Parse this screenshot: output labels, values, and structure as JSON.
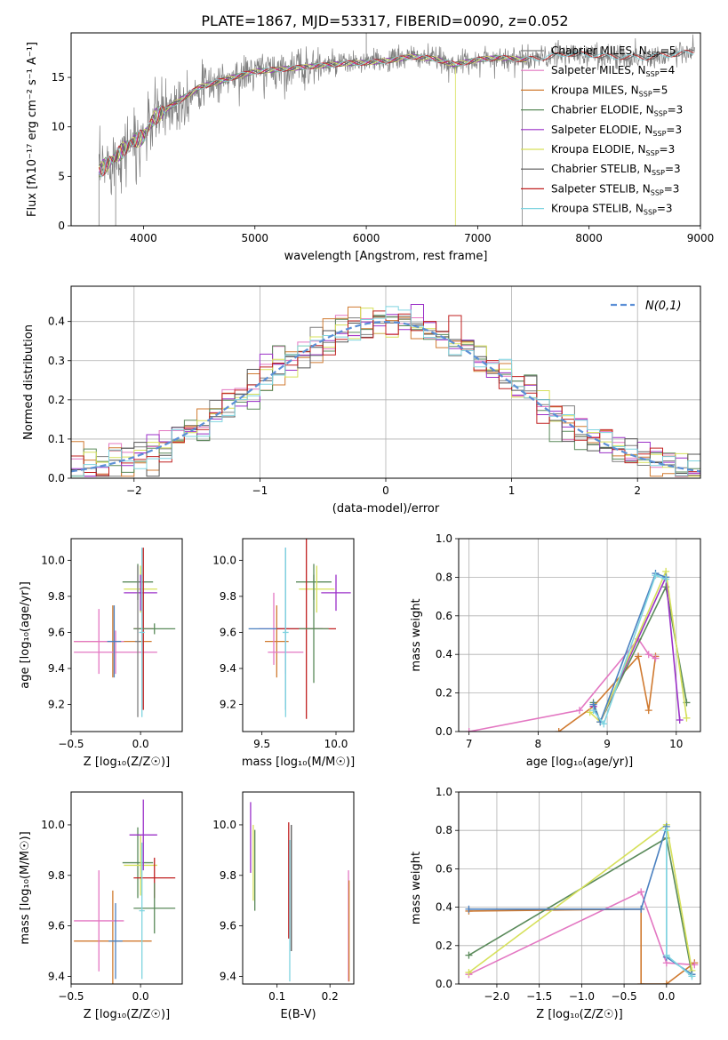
{
  "page": {
    "title": "PLATE=1867, MJD=53317, FIBERID=0090, z=0.052"
  },
  "chart_data": [
    {
      "id": "spectrum",
      "type": "line",
      "xlabel": "wavelength [Angstrom, rest frame]",
      "ylabel": "Flux [fλ10⁻¹⁷ erg cm⁻² s⁻¹ A⁻¹]",
      "xlim": [
        3350,
        9000
      ],
      "ylim": [
        0,
        19.5
      ],
      "xticks": [
        "4000",
        "5000",
        "6000",
        "7000",
        "8000",
        "9000"
      ],
      "yticks": [
        "0",
        "5",
        "10",
        "15"
      ],
      "grid": false,
      "legend": "top-right",
      "series": [
        {
          "name": "Chabrier MILES, N_SSP=5",
          "color": "#7f7f7f"
        },
        {
          "name": "Salpeter MILES, N_SSP=4",
          "color": "#e377c2"
        },
        {
          "name": "Kroupa MILES, N_SSP=5",
          "color": "#d07a30"
        },
        {
          "name": "Chabrier ELODIE, N_SSP=3",
          "color": "#5a8a5a"
        },
        {
          "name": "Salpeter ELODIE, N_SSP=3",
          "color": "#9b30c8"
        },
        {
          "name": "Kroupa ELODIE, N_SSP=3",
          "color": "#d6e05a"
        },
        {
          "name": "Chabrier STELIB, N_SSP=3",
          "color": "#555555"
        },
        {
          "name": "Salpeter STELIB, N_SSP=3",
          "color": "#c02020"
        },
        {
          "name": "Kroupa STELIB, N_SSP=3",
          "color": "#7fd4e0"
        }
      ],
      "continuum": {
        "x": [
          3600,
          3750,
          3900,
          4000,
          4100,
          4300,
          4500,
          4800,
          5000,
          5200,
          5500,
          5800,
          6000,
          6200,
          6400,
          6600,
          6800,
          7000,
          7200,
          7400,
          7600,
          7800,
          8000,
          8200,
          8500,
          8800,
          8950
        ],
        "y": [
          5.5,
          7,
          8.5,
          9,
          11,
          12.5,
          14,
          15,
          15.6,
          15.8,
          16.1,
          16.4,
          16.5,
          16.7,
          17.1,
          16.9,
          16.3,
          16.8,
          17,
          16.8,
          17,
          17.4,
          17.3,
          17.1,
          17,
          17.4,
          17.6
        ]
      }
    },
    {
      "id": "residuals",
      "type": "bar",
      "xlabel": "(data-model)/error",
      "ylabel": "Normed distribution",
      "xlim": [
        -2.5,
        2.5
      ],
      "ylim": [
        0,
        0.49
      ],
      "xticks": [
        "−2",
        "−1",
        "0",
        "1",
        "2"
      ],
      "yticks": [
        "0.0",
        "0.1",
        "0.2",
        "0.3",
        "0.4"
      ],
      "grid": true,
      "legend": "top-right",
      "legend_label": "N(0,1)",
      "bin_width": 0.1,
      "bin_start": -2.5
    },
    {
      "id": "age-Z",
      "type": "scatter",
      "xlabel": "Z [log₁₀(Z/Z☉)]",
      "ylabel": "age  [log₁₀(age/yr)]",
      "xlim": [
        -0.5,
        0.3
      ],
      "ylim": [
        9.05,
        10.12
      ],
      "xticks": [
        "−0.5",
        "0.0"
      ],
      "yticks": [
        "9.2",
        "9.4",
        "9.6",
        "9.8",
        "10.0"
      ],
      "points": [
        {
          "x": -0.2,
          "y": 9.55,
          "xerr": 0.28,
          "yerr": 0.2,
          "color": "#d07a30"
        },
        {
          "x": -0.3,
          "y": 9.55,
          "xerr": 0.18,
          "yerr": 0.18,
          "color": "#e377c2"
        },
        {
          "x": -0.18,
          "y": 9.49,
          "xerr": 0.3,
          "yerr": 0.12,
          "color": "#e377c2"
        },
        {
          "x": -0.19,
          "y": 9.55,
          "xerr": 0.05,
          "yerr": 0.2,
          "color": "#4a80c0"
        },
        {
          "x": -0.02,
          "y": 9.88,
          "xerr": 0.11,
          "yerr": 0.1,
          "color": "#5a8a5a"
        },
        {
          "x": 0.0,
          "y": 9.84,
          "xerr": 0.12,
          "yerr": 0.13,
          "color": "#d6e05a"
        },
        {
          "x": 0.0,
          "y": 9.82,
          "xerr": 0.12,
          "yerr": 0.1,
          "color": "#9b30c8"
        },
        {
          "x": 0.02,
          "y": 9.62,
          "xerr": 0.07,
          "yerr": 0.45,
          "color": "#c02020"
        },
        {
          "x": 0.1,
          "y": 9.62,
          "xerr": 0.15,
          "yerr": 0.03,
          "color": "#5a8a5a"
        },
        {
          "x": 0.01,
          "y": 9.6,
          "xerr": 0.02,
          "yerr": 0.47,
          "color": "#7fd4e0"
        },
        {
          "x": -0.02,
          "y": 9.55,
          "xerr": 0.02,
          "yerr": 0.42,
          "color": "#7f7f7f"
        }
      ]
    },
    {
      "id": "age-mass",
      "type": "scatter",
      "xlabel": "mass [log₁₀(M/M☉)]",
      "ylabel": "",
      "xlim": [
        9.37,
        10.12
      ],
      "ylim": [
        9.05,
        10.12
      ],
      "xticks": [
        "9.5",
        "10.0"
      ],
      "yticks": [
        "9.2",
        "9.4",
        "9.6",
        "9.8",
        "10.0"
      ],
      "points": [
        {
          "x": 9.6,
          "y": 9.55,
          "xerr": 0.08,
          "yerr": 0.2,
          "color": "#d07a30"
        },
        {
          "x": 9.58,
          "y": 9.62,
          "xerr": 0.1,
          "yerr": 0.2,
          "color": "#e377c2"
        },
        {
          "x": 9.66,
          "y": 9.49,
          "xerr": 0.12,
          "yerr": 0.12,
          "color": "#e377c2"
        },
        {
          "x": 9.66,
          "y": 9.62,
          "xerr": 0.25,
          "yerr": 0.45,
          "color": "#4a80c0"
        },
        {
          "x": 9.85,
          "y": 9.88,
          "xerr": 0.12,
          "yerr": 0.1,
          "color": "#5a8a5a"
        },
        {
          "x": 9.87,
          "y": 9.84,
          "xerr": 0.12,
          "yerr": 0.13,
          "color": "#d6e05a"
        },
        {
          "x": 10.0,
          "y": 9.82,
          "xerr": 0.1,
          "yerr": 0.1,
          "color": "#9b30c8"
        },
        {
          "x": 9.8,
          "y": 9.62,
          "xerr": 0.2,
          "yerr": 0.5,
          "color": "#c02020"
        },
        {
          "x": 9.85,
          "y": 9.62,
          "xerr": 0.1,
          "yerr": 0.3,
          "color": "#5a8a5a"
        },
        {
          "x": 9.66,
          "y": 9.6,
          "xerr": 0.02,
          "yerr": 0.47,
          "color": "#7fd4e0"
        }
      ]
    },
    {
      "id": "massweight-age",
      "type": "line",
      "xlabel": "age  [log₁₀(age/yr)]",
      "ylabel": "mass weight",
      "xlim": [
        6.85,
        10.35
      ],
      "ylim": [
        0,
        1.0
      ],
      "xticks": [
        "7",
        "8",
        "9",
        "10"
      ],
      "yticks": [
        "0.0",
        "0.2",
        "0.4",
        "0.6",
        "0.8",
        "1.0"
      ],
      "grid": true,
      "series": [
        {
          "color": "#d07a30",
          "x": [
            8.3,
            8.8,
            9.45,
            9.6,
            9.7
          ],
          "y": [
            0.0,
            0.13,
            0.39,
            0.11,
            0.39
          ]
        },
        {
          "color": "#e377c2",
          "x": [
            7.0,
            8.6,
            9.45,
            9.6,
            9.7
          ],
          "y": [
            0.0,
            0.11,
            0.48,
            0.4,
            0.38
          ]
        },
        {
          "color": "#5a8a5a",
          "x": [
            8.8,
            8.9,
            9.85,
            10.15
          ],
          "y": [
            0.15,
            0.05,
            0.75,
            0.15
          ]
        },
        {
          "color": "#9b30c8",
          "x": [
            8.8,
            8.9,
            9.85,
            10.05
          ],
          "y": [
            0.13,
            0.05,
            0.8,
            0.06
          ]
        },
        {
          "color": "#d6e05a",
          "x": [
            8.75,
            8.9,
            9.85,
            10.15
          ],
          "y": [
            0.1,
            0.05,
            0.83,
            0.07
          ]
        },
        {
          "color": "#4a80c0",
          "x": [
            8.8,
            8.9,
            9.7,
            9.85
          ],
          "y": [
            0.14,
            0.05,
            0.82,
            0.8
          ]
        },
        {
          "color": "#7fd4e0",
          "x": [
            8.8,
            8.95,
            9.7,
            9.85
          ],
          "y": [
            0.11,
            0.04,
            0.81,
            0.79
          ]
        }
      ]
    },
    {
      "id": "mass-Z",
      "type": "scatter",
      "xlabel": "Z [log₁₀(Z/Z☉)]",
      "ylabel": "mass [log₁₀(M/M☉)]",
      "xlim": [
        -0.5,
        0.3
      ],
      "ylim": [
        9.37,
        10.13
      ],
      "xticks": [
        "−0.5",
        "0.0"
      ],
      "yticks": [
        "9.4",
        "9.6",
        "9.8",
        "10.0"
      ],
      "points": [
        {
          "x": -0.2,
          "y": 9.54,
          "xerr": 0.28,
          "yerr": 0.2,
          "color": "#d07a30"
        },
        {
          "x": -0.3,
          "y": 9.62,
          "xerr": 0.18,
          "yerr": 0.2,
          "color": "#e377c2"
        },
        {
          "x": -0.18,
          "y": 9.54,
          "xerr": 0.05,
          "yerr": 0.15,
          "color": "#4a80c0"
        },
        {
          "x": -0.02,
          "y": 9.85,
          "xerr": 0.11,
          "yerr": 0.14,
          "color": "#5a8a5a"
        },
        {
          "x": 0.0,
          "y": 9.84,
          "xerr": 0.12,
          "yerr": 0.12,
          "color": "#d6e05a"
        },
        {
          "x": 0.02,
          "y": 9.96,
          "xerr": 0.1,
          "yerr": 0.14,
          "color": "#9b30c8"
        },
        {
          "x": 0.1,
          "y": 9.79,
          "xerr": 0.15,
          "yerr": 0.08,
          "color": "#c02020"
        },
        {
          "x": 0.1,
          "y": 9.67,
          "xerr": 0.15,
          "yerr": 0.1,
          "color": "#5a8a5a"
        },
        {
          "x": 0.01,
          "y": 9.66,
          "xerr": 0.02,
          "yerr": 0.27,
          "color": "#7fd4e0"
        }
      ]
    },
    {
      "id": "mass-EBV",
      "type": "scatter",
      "xlabel": "E(B-V)",
      "ylabel": "",
      "xlim": [
        0.035,
        0.245
      ],
      "ylim": [
        9.37,
        10.13
      ],
      "xticks": [
        "0.1",
        "0.2"
      ],
      "yticks": [
        "9.4",
        "9.6",
        "9.8",
        "10.0"
      ],
      "points": [
        {
          "x": 0.05,
          "y": 9.95,
          "yerr": 0.14,
          "color": "#9b30c8"
        },
        {
          "x": 0.055,
          "y": 9.85,
          "yerr": 0.15,
          "color": "#d6e05a"
        },
        {
          "x": 0.058,
          "y": 9.82,
          "yerr": 0.16,
          "color": "#5a8a5a"
        },
        {
          "x": 0.122,
          "y": 9.78,
          "yerr": 0.23,
          "color": "#c02020"
        },
        {
          "x": 0.124,
          "y": 9.66,
          "yerr": 0.28,
          "color": "#7fd4e0"
        },
        {
          "x": 0.127,
          "y": 9.75,
          "yerr": 0.25,
          "color": "#555555"
        },
        {
          "x": 0.235,
          "y": 9.6,
          "yerr": 0.22,
          "color": "#e377c2"
        },
        {
          "x": 0.236,
          "y": 9.58,
          "yerr": 0.2,
          "color": "#d07a30"
        }
      ]
    },
    {
      "id": "massweight-Z",
      "type": "line",
      "xlabel": "Z [log₁₀(Z/Z☉)]",
      "ylabel": "mass weight",
      "xlim": [
        -2.45,
        0.4
      ],
      "ylim": [
        0,
        1.0
      ],
      "xticks": [
        "−2.0",
        "−1.5",
        "−1.0",
        "−0.5",
        "0.0"
      ],
      "yticks": [
        "0.0",
        "0.2",
        "0.4",
        "0.6",
        "0.8",
        "1.0"
      ],
      "grid": true,
      "series": [
        {
          "color": "#d07a30",
          "x": [
            -2.33,
            -0.3,
            -0.3,
            0.0,
            0.33
          ],
          "y": [
            0.38,
            0.39,
            0.0,
            0.0,
            0.11
          ]
        },
        {
          "color": "#e377c2",
          "x": [
            -2.33,
            -0.3,
            0.0,
            0.33
          ],
          "y": [
            0.05,
            0.48,
            0.11,
            0.1
          ]
        },
        {
          "color": "#5a8a5a",
          "x": [
            -2.33,
            0.0,
            0.3
          ],
          "y": [
            0.15,
            0.76,
            0.05
          ]
        },
        {
          "color": "#d6e05a",
          "x": [
            -2.33,
            0.0,
            0.3
          ],
          "y": [
            0.06,
            0.83,
            0.07
          ]
        },
        {
          "color": "#4a80c0",
          "x": [
            -2.33,
            -0.3,
            0.0,
            0.0,
            0.3
          ],
          "y": [
            0.39,
            0.39,
            0.82,
            0.14,
            0.05
          ]
        },
        {
          "color": "#7fd4e0",
          "x": [
            0.0,
            0.0,
            0.3
          ],
          "y": [
            0.8,
            0.15,
            0.04
          ]
        }
      ]
    }
  ]
}
